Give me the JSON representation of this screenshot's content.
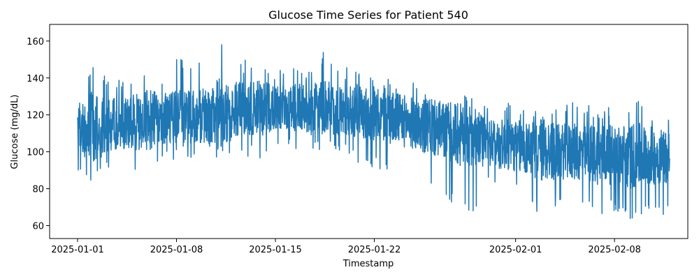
{
  "chart_data": {
    "type": "line",
    "title": "Glucose Time Series for Patient 540",
    "xlabel": "Timestamp",
    "ylabel": "Glucose (mg/dL)",
    "grid": false,
    "legend": "none",
    "line_color": "#1f77b4",
    "x_range": [
      "2025-01-01",
      "2025-02-12"
    ],
    "ylim": [
      53,
      169
    ],
    "xticks": [
      "2025-01-01",
      "2025-01-08",
      "2025-01-15",
      "2025-01-22",
      "2025-02-01",
      "2025-02-08"
    ],
    "yticks": [
      60,
      80,
      100,
      120,
      140,
      160
    ],
    "series": [
      {
        "x": [
          "2025-01-01",
          "2025-01-02",
          "2025-01-03",
          "2025-01-04",
          "2025-01-05",
          "2025-01-06",
          "2025-01-07",
          "2025-01-08",
          "2025-01-09",
          "2025-01-10",
          "2025-01-11",
          "2025-01-12",
          "2025-01-13",
          "2025-01-14",
          "2025-01-15",
          "2025-01-16",
          "2025-01-17",
          "2025-01-18",
          "2025-01-19",
          "2025-01-20",
          "2025-01-21",
          "2025-01-22",
          "2025-01-23",
          "2025-01-24",
          "2025-01-25",
          "2025-01-26",
          "2025-01-27",
          "2025-01-28",
          "2025-01-29",
          "2025-01-30",
          "2025-01-31",
          "2025-02-01",
          "2025-02-02",
          "2025-02-03",
          "2025-02-04",
          "2025-02-05",
          "2025-02-06",
          "2025-02-07",
          "2025-02-08",
          "2025-02-09",
          "2025-02-10",
          "2025-02-11"
        ],
        "mean": [
          112,
          113,
          114,
          115,
          116,
          117,
          118,
          118,
          119,
          120,
          121,
          122,
          123,
          124,
          124,
          124,
          124,
          123,
          123,
          122,
          121,
          120,
          119,
          117,
          115,
          113,
          111,
          109,
          107,
          105,
          104,
          103,
          102,
          101,
          100,
          100,
          99,
          99,
          98,
          98,
          98,
          98
        ],
        "min": [
          84,
          79,
          88,
          87,
          89,
          90,
          93,
          96,
          97,
          96,
          95,
          95,
          96,
          96,
          102,
          100,
          97,
          98,
          100,
          97,
          92,
          90,
          89,
          88,
          86,
          80,
          72,
          70,
          67,
          80,
          78,
          76,
          74,
          58,
          72,
          71,
          70,
          63,
          68,
          62,
          65,
          66
        ],
        "max": [
          128,
          150,
          144,
          141,
          143,
          151,
          143,
          152,
          148,
          151,
          163,
          152,
          150,
          153,
          145,
          146,
          145,
          154,
          154,
          146,
          143,
          141,
          141,
          140,
          137,
          135,
          131,
          133,
          129,
          124,
          128,
          127,
          128,
          124,
          126,
          127,
          126,
          125,
          125,
          129,
          128,
          122
        ]
      }
    ]
  }
}
